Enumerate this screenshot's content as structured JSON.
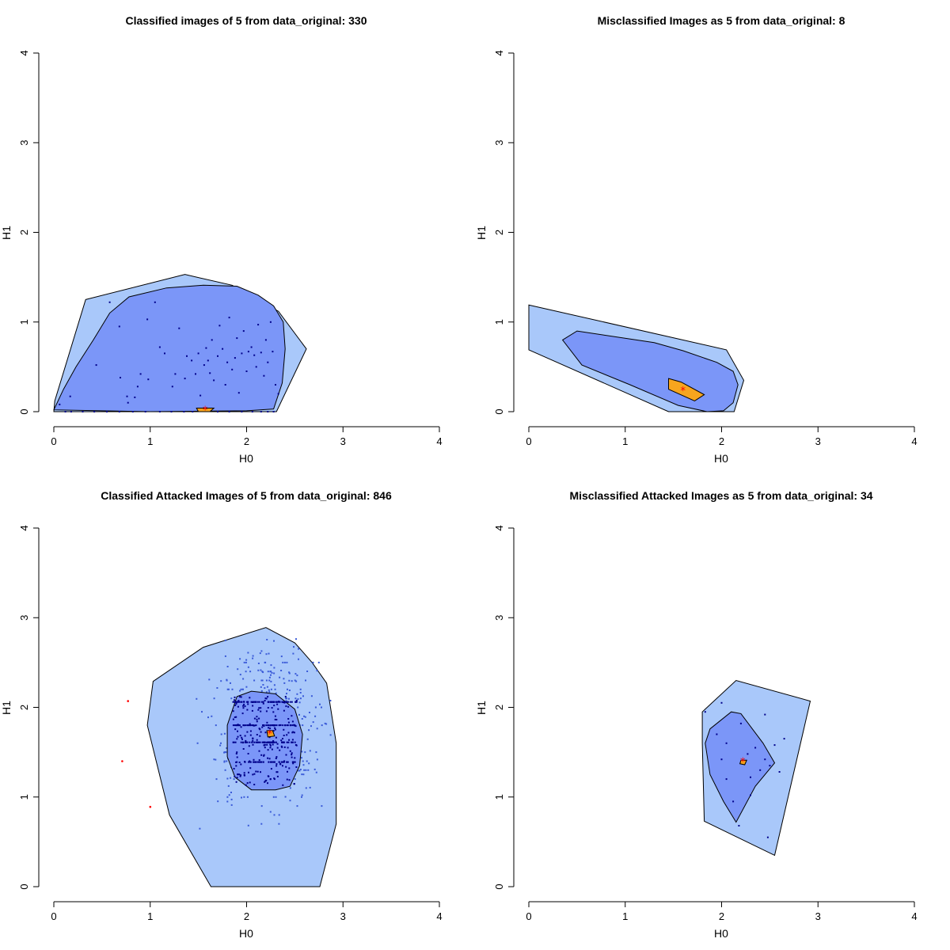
{
  "chart_data": [
    {
      "type": "scatter",
      "title": "Classified images of 5 from data_original: 330",
      "xlabel": "H0",
      "ylabel": "H1",
      "xlim": [
        0,
        4
      ],
      "ylim": [
        0,
        4
      ],
      "xticks": [
        "0",
        "1",
        "2",
        "3",
        "4"
      ],
      "yticks": [
        "0",
        "1",
        "2",
        "3",
        "4"
      ],
      "bag": [
        [
          0.33,
          1.25
        ],
        [
          1.36,
          1.53
        ],
        [
          1.85,
          1.41
        ],
        [
          2.33,
          1.12
        ],
        [
          2.62,
          0.7
        ],
        [
          2.31,
          0.0
        ],
        [
          0.0,
          0.0
        ],
        [
          0.01,
          0.12
        ]
      ],
      "loop": [
        [
          0.0,
          0.02
        ],
        [
          0.1,
          0.25
        ],
        [
          0.23,
          0.5
        ],
        [
          0.41,
          0.8
        ],
        [
          0.58,
          1.1
        ],
        [
          0.78,
          1.28
        ],
        [
          1.17,
          1.38
        ],
        [
          1.55,
          1.41
        ],
        [
          1.9,
          1.4
        ],
        [
          2.12,
          1.3
        ],
        [
          2.28,
          1.18
        ],
        [
          2.38,
          1.0
        ],
        [
          2.4,
          0.7
        ],
        [
          2.37,
          0.32
        ],
        [
          2.28,
          0.03
        ],
        [
          2.0,
          0.01
        ],
        [
          1.0,
          0.0
        ]
      ],
      "center_region": [
        [
          1.48,
          0.04
        ],
        [
          1.66,
          0.04
        ],
        [
          1.62,
          0.0
        ],
        [
          1.5,
          0.0
        ]
      ],
      "median": [
        1.57,
        0.02
      ],
      "points": [
        [
          0.06,
          0.08
        ],
        [
          0.17,
          0.17
        ],
        [
          0.44,
          0.52
        ],
        [
          0.58,
          1.22
        ],
        [
          0.68,
          0.95
        ],
        [
          0.69,
          0.38
        ],
        [
          0.76,
          0.17
        ],
        [
          0.77,
          0.1
        ],
        [
          0.84,
          0.16
        ],
        [
          0.87,
          0.28
        ],
        [
          0.9,
          0.42
        ],
        [
          0.97,
          1.03
        ],
        [
          0.98,
          0.36
        ],
        [
          1.05,
          1.22
        ],
        [
          1.1,
          0.72
        ],
        [
          1.15,
          0.65
        ],
        [
          1.23,
          0.28
        ],
        [
          1.26,
          0.42
        ],
        [
          1.3,
          0.93
        ],
        [
          1.36,
          0.37
        ],
        [
          1.38,
          0.62
        ],
        [
          1.43,
          0.57
        ],
        [
          1.47,
          0.42
        ],
        [
          1.5,
          0.65
        ],
        [
          1.52,
          0.18
        ],
        [
          1.56,
          0.52
        ],
        [
          1.58,
          0.71
        ],
        [
          1.6,
          0.57
        ],
        [
          1.62,
          0.43
        ],
        [
          1.64,
          0.8
        ],
        [
          1.66,
          0.35
        ],
        [
          1.7,
          0.62
        ],
        [
          1.72,
          0.96
        ],
        [
          1.75,
          0.7
        ],
        [
          1.78,
          0.3
        ],
        [
          1.8,
          0.55
        ],
        [
          1.82,
          1.05
        ],
        [
          1.85,
          0.47
        ],
        [
          1.88,
          0.6
        ],
        [
          1.9,
          0.82
        ],
        [
          1.92,
          0.21
        ],
        [
          1.95,
          0.65
        ],
        [
          1.97,
          0.9
        ],
        [
          2.0,
          0.45
        ],
        [
          2.02,
          0.67
        ],
        [
          2.05,
          0.72
        ],
        [
          2.08,
          0.63
        ],
        [
          2.1,
          0.5
        ],
        [
          2.12,
          0.97
        ],
        [
          2.15,
          0.66
        ],
        [
          2.18,
          0.4
        ],
        [
          2.2,
          0.8
        ],
        [
          2.22,
          0.55
        ],
        [
          2.25,
          1.0
        ],
        [
          2.27,
          0.67
        ],
        [
          2.3,
          0.3
        ],
        [
          2.33,
          0.2
        ]
      ],
      "baseline": [
        [
          0.12,
          0.0
        ],
        [
          0.18,
          0.0
        ],
        [
          0.3,
          0.0
        ],
        [
          0.42,
          0.0
        ],
        [
          0.55,
          0.0
        ],
        [
          0.68,
          0.0
        ],
        [
          0.82,
          0.0
        ],
        [
          0.95,
          0.0
        ],
        [
          1.1,
          0.0
        ],
        [
          1.22,
          0.0
        ],
        [
          1.35,
          0.0
        ],
        [
          1.44,
          0.0
        ],
        [
          1.7,
          0.0
        ],
        [
          1.82,
          0.0
        ],
        [
          1.95,
          0.0
        ],
        [
          2.06,
          0.0
        ],
        [
          2.15,
          0.0
        ],
        [
          2.22,
          0.0
        ],
        [
          2.28,
          0.0
        ]
      ],
      "outliers": []
    },
    {
      "type": "scatter",
      "title": "Misclassified Images as 5 from data_original: 8",
      "xlabel": "H0",
      "ylabel": "H1",
      "xlim": [
        0,
        4
      ],
      "ylim": [
        0,
        4
      ],
      "xticks": [
        "0",
        "1",
        "2",
        "3",
        "4"
      ],
      "yticks": [
        "0",
        "1",
        "2",
        "3",
        "4"
      ],
      "bag": [
        [
          0.0,
          1.19
        ],
        [
          2.05,
          0.69
        ],
        [
          2.23,
          0.35
        ],
        [
          2.13,
          0.0
        ],
        [
          1.45,
          0.0
        ],
        [
          0.0,
          0.69
        ]
      ],
      "loop": [
        [
          0.35,
          0.8
        ],
        [
          0.5,
          0.9
        ],
        [
          1.3,
          0.77
        ],
        [
          1.6,
          0.68
        ],
        [
          1.95,
          0.55
        ],
        [
          2.12,
          0.45
        ],
        [
          2.17,
          0.3
        ],
        [
          2.12,
          0.1
        ],
        [
          2.02,
          0.01
        ],
        [
          1.85,
          0.0
        ],
        [
          1.55,
          0.07
        ],
        [
          1.05,
          0.3
        ],
        [
          0.55,
          0.52
        ]
      ],
      "center_region": [
        [
          1.45,
          0.37
        ],
        [
          1.58,
          0.33
        ],
        [
          1.82,
          0.19
        ],
        [
          1.72,
          0.12
        ],
        [
          1.45,
          0.25
        ]
      ],
      "median": [
        1.6,
        0.24
      ],
      "points": [],
      "baseline": [],
      "outliers": []
    },
    {
      "type": "scatter",
      "title": "Classified Attacked Images of 5 from data_original: 846",
      "xlabel": "H0",
      "ylabel": "H1",
      "xlim": [
        0,
        4
      ],
      "ylim": [
        0,
        4
      ],
      "xticks": [
        "0",
        "1",
        "2",
        "3",
        "4"
      ],
      "yticks": [
        "0",
        "1",
        "2",
        "3",
        "4"
      ],
      "bag": [
        [
          1.03,
          2.29
        ],
        [
          1.55,
          2.67
        ],
        [
          2.2,
          2.89
        ],
        [
          2.5,
          2.72
        ],
        [
          2.68,
          2.5
        ],
        [
          2.83,
          2.27
        ],
        [
          2.93,
          1.6
        ],
        [
          2.93,
          0.7
        ],
        [
          2.76,
          0.0
        ],
        [
          1.63,
          0.0
        ],
        [
          1.2,
          0.8
        ],
        [
          0.97,
          1.8
        ]
      ],
      "loop": [
        [
          1.9,
          2.12
        ],
        [
          2.05,
          2.18
        ],
        [
          2.3,
          2.15
        ],
        [
          2.5,
          1.98
        ],
        [
          2.58,
          1.7
        ],
        [
          2.55,
          1.35
        ],
        [
          2.45,
          1.12
        ],
        [
          2.3,
          1.08
        ],
        [
          2.05,
          1.08
        ],
        [
          1.88,
          1.22
        ],
        [
          1.8,
          1.45
        ],
        [
          1.8,
          1.8
        ]
      ],
      "center_region": [
        [
          2.21,
          1.74
        ],
        [
          2.27,
          1.74
        ],
        [
          2.29,
          1.68
        ],
        [
          2.22,
          1.67
        ]
      ],
      "median": [
        2.24,
        1.71
      ],
      "points": [],
      "baseline": [],
      "outliers": [
        [
          0.77,
          2.07
        ],
        [
          0.71,
          1.4
        ],
        [
          1.0,
          0.89
        ]
      ]
    },
    {
      "type": "scatter",
      "title": "Misclassified Attacked Images as 5 from data_original: 34",
      "xlabel": "H0",
      "ylabel": "H1",
      "xlim": [
        0,
        4
      ],
      "ylim": [
        0,
        4
      ],
      "xticks": [
        "0",
        "1",
        "2",
        "3",
        "4"
      ],
      "yticks": [
        "0",
        "1",
        "2",
        "3",
        "4"
      ],
      "bag": [
        [
          1.8,
          1.95
        ],
        [
          2.15,
          2.3
        ],
        [
          2.92,
          2.07
        ],
        [
          2.55,
          0.35
        ],
        [
          1.82,
          0.73
        ],
        [
          1.8,
          1.6
        ]
      ],
      "loop": [
        [
          1.88,
          1.76
        ],
        [
          2.1,
          1.95
        ],
        [
          2.2,
          1.93
        ],
        [
          2.43,
          1.6
        ],
        [
          2.55,
          1.38
        ],
        [
          2.35,
          1.12
        ],
        [
          2.15,
          0.72
        ],
        [
          2.02,
          0.95
        ],
        [
          1.88,
          1.25
        ],
        [
          1.83,
          1.6
        ]
      ],
      "center_region": [
        [
          2.2,
          1.41
        ],
        [
          2.26,
          1.41
        ],
        [
          2.24,
          1.36
        ],
        [
          2.19,
          1.37
        ]
      ],
      "median": [
        2.22,
        1.4
      ],
      "points": [
        [
          1.83,
          1.95
        ],
        [
          2.0,
          2.05
        ],
        [
          1.95,
          1.7
        ],
        [
          2.05,
          1.6
        ],
        [
          2.2,
          1.82
        ],
        [
          2.27,
          1.48
        ],
        [
          2.35,
          1.55
        ],
        [
          2.4,
          1.3
        ],
        [
          2.45,
          1.42
        ],
        [
          2.5,
          1.35
        ],
        [
          2.55,
          1.58
        ],
        [
          2.6,
          1.28
        ],
        [
          2.0,
          1.42
        ],
        [
          2.05,
          1.2
        ],
        [
          2.12,
          0.95
        ],
        [
          2.18,
          0.68
        ],
        [
          2.3,
          1.22
        ],
        [
          2.48,
          0.55
        ],
        [
          2.65,
          1.65
        ],
        [
          2.45,
          1.92
        ],
        [
          2.3,
          1.02
        ]
      ],
      "baseline": [],
      "outliers": []
    }
  ],
  "colors": {
    "bag": "#a9c8fa",
    "loop": "#7b96f8",
    "center": "#f7a51e",
    "points": "#00008b",
    "scatter_light": "#3a5ad8",
    "median": "#ff0000",
    "outlier": "#ff0000"
  }
}
